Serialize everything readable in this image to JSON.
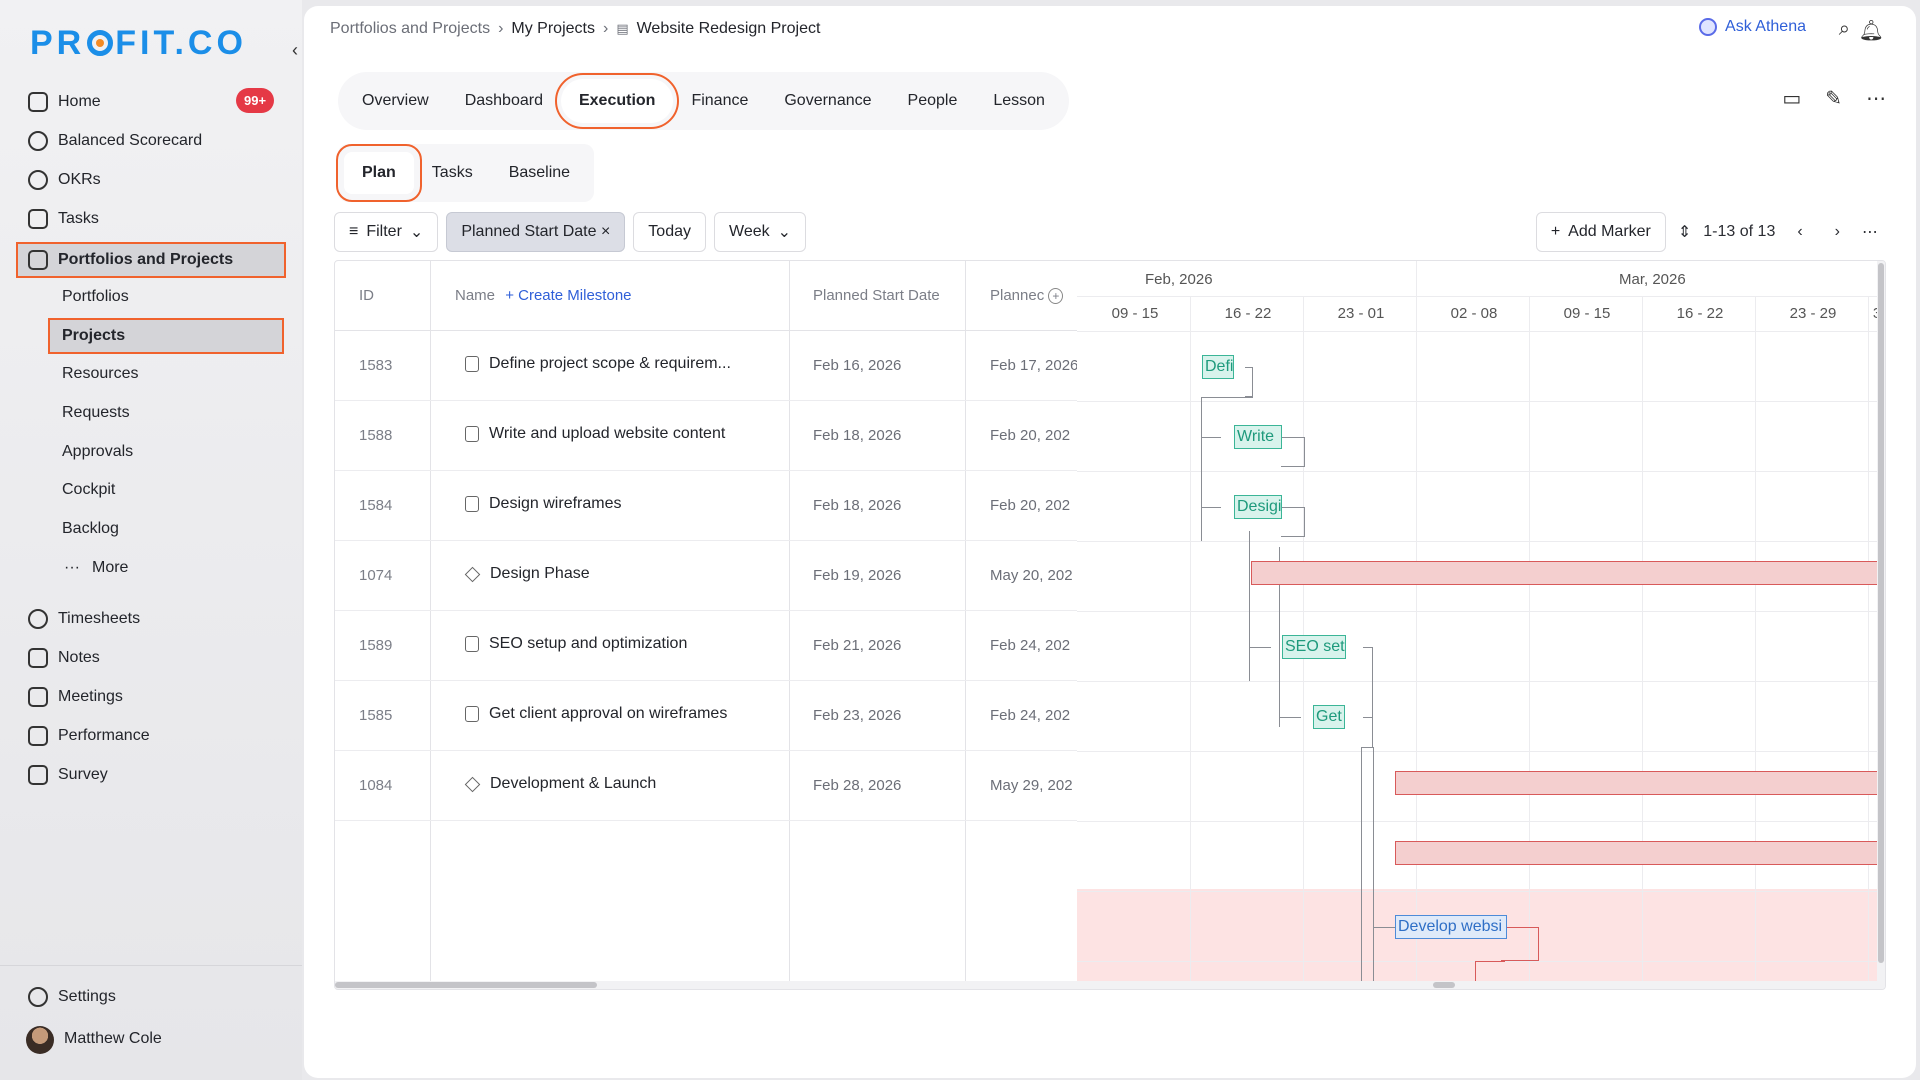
{
  "sidebar": {
    "logo": "PROFIT.CO",
    "items": [
      {
        "label": "Home",
        "icon": "home-icon",
        "badge": "99+"
      },
      {
        "label": "Balanced Scorecard",
        "icon": "scorecard-icon"
      },
      {
        "label": "OKRs",
        "icon": "target-icon"
      },
      {
        "label": "Tasks",
        "icon": "clipboard-icon"
      },
      {
        "label": "Portfolios and Projects",
        "icon": "briefcase-icon"
      }
    ],
    "sub_items": [
      "Portfolios",
      "Projects",
      "Resources",
      "Requests",
      "Approvals",
      "Cockpit",
      "Backlog",
      "More"
    ],
    "items2": [
      {
        "label": "Timesheets",
        "icon": "clock-icon"
      },
      {
        "label": "Notes",
        "icon": "notes-icon"
      },
      {
        "label": "Meetings",
        "icon": "calendar-icon"
      },
      {
        "label": "Performance",
        "icon": "chart-icon"
      },
      {
        "label": "Survey",
        "icon": "survey-icon"
      }
    ],
    "settings": "Settings",
    "user": "Matthew Cole"
  },
  "breadcrumb": [
    "Portfolios and Projects",
    "My Projects",
    "Website Redesign Project"
  ],
  "ask_athena": "Ask Athena",
  "tabs": [
    "Overview",
    "Dashboard",
    "Execution",
    "Finance",
    "Governance",
    "People",
    "Lesson"
  ],
  "subtabs": [
    "Plan",
    "Tasks",
    "Baseline"
  ],
  "toolbar": {
    "filter": "Filter",
    "chip": "Planned Start Date ×",
    "today": "Today",
    "week": "Week",
    "add_marker": "Add Marker",
    "pager": "1-13 of 13"
  },
  "table": {
    "headers": {
      "id": "ID",
      "name": "Name",
      "create": "+ Create Milestone",
      "start": "Planned Start Date",
      "end": "Plannec"
    },
    "rows": [
      {
        "id": "1583",
        "name": "Define project scope & requirem...",
        "type": "task",
        "start": "Feb 16, 2026",
        "end": "Feb 17, 2026"
      },
      {
        "id": "1588",
        "name": "Write and upload website content",
        "type": "task",
        "start": "Feb 18, 2026",
        "end": "Feb 20, 202"
      },
      {
        "id": "1584",
        "name": "Design wireframes",
        "type": "task",
        "start": "Feb 18, 2026",
        "end": "Feb 20, 202"
      },
      {
        "id": "1074",
        "name": "Design Phase",
        "type": "milestone",
        "start": "Feb 19, 2026",
        "end": "May 20, 202"
      },
      {
        "id": "1589",
        "name": "SEO setup and optimization",
        "type": "task",
        "start": "Feb 21, 2026",
        "end": "Feb 24, 202"
      },
      {
        "id": "1585",
        "name": "Get client approval on wireframes",
        "type": "task",
        "start": "Feb 23, 2026",
        "end": "Feb 24, 202"
      },
      {
        "id": "1084",
        "name": "Development & Launch",
        "type": "milestone",
        "start": "Feb 28, 2026",
        "end": "May 29, 202"
      }
    ]
  },
  "gantt": {
    "months": [
      "Feb, 2026",
      "Mar, 2026"
    ],
    "weeks": [
      "09 - 15",
      "16 - 22",
      "23 - 01",
      "02 - 08",
      "09 - 15",
      "16 - 22",
      "23 - 29",
      "3"
    ],
    "bars": [
      "Defi",
      "Write",
      "Desigi",
      "SEO setı",
      "Get",
      "Develop websi"
    ]
  },
  "colors": {
    "accent": "#f0622d",
    "brand": "#1b8ee8",
    "task": "#3bb597",
    "phase": "#d85a5a"
  }
}
